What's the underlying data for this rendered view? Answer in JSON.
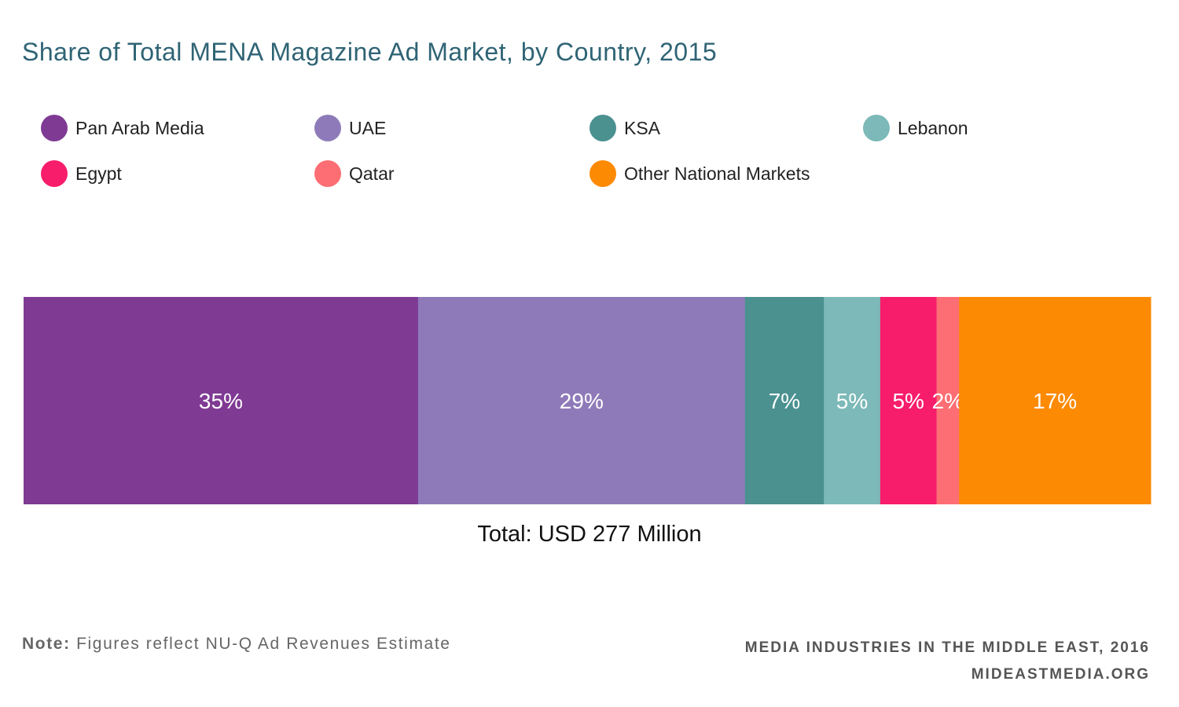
{
  "chart_data": {
    "type": "bar",
    "orientation": "horizontal-stacked-100",
    "title": "Share of Total MENA Magazine Ad Market, by Country, 2015",
    "categories": [
      "Pan Arab Media",
      "UAE",
      "KSA",
      "Lebanon",
      "Egypt",
      "Qatar",
      "Other National Markets"
    ],
    "values": [
      35,
      29,
      7,
      5,
      5,
      2,
      17
    ],
    "labels": [
      "35%",
      "29%",
      "7%",
      "5%",
      "5%",
      "2%",
      "17%"
    ],
    "colors": [
      "#7f3a94",
      "#8f7ab9",
      "#4a9190",
      "#7cb9b8",
      "#f81d6b",
      "#fc6e73",
      "#fd8a03"
    ],
    "unit": "%",
    "total_label": "Total: USD 277 Million",
    "legend_position": "top",
    "grid": false
  },
  "note": {
    "label": "Note:",
    "text": "Figures reflect NU-Q Ad Revenues Estimate"
  },
  "footer": {
    "line1": "MEDIA INDUSTRIES IN THE MIDDLE EAST, 2016",
    "line2": "MIDEASTMEDIA.ORG"
  }
}
